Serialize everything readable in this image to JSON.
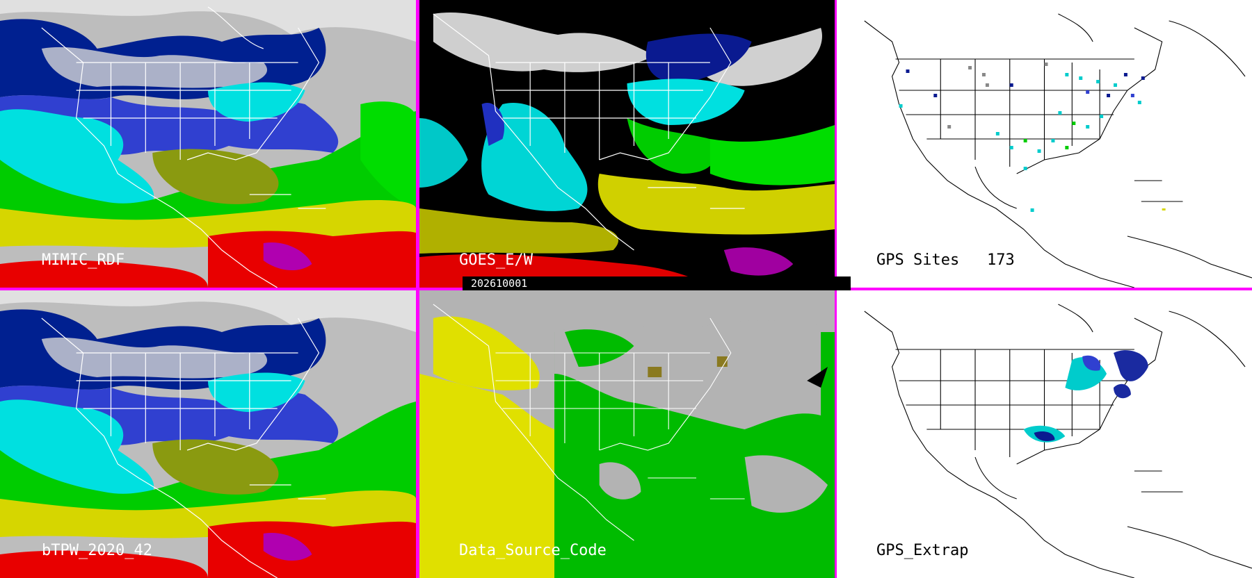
{
  "panels": {
    "mimic": {
      "label": "MIMIC_RDF"
    },
    "goes": {
      "label": "GOES_E/W"
    },
    "gps_sites": {
      "label": "GPS Sites",
      "count": "173"
    },
    "btpw": {
      "label": "bTPW_2020_42"
    },
    "data_source": {
      "label": "Data_Source_Code"
    },
    "gps_extrap": {
      "label": "GPS_Extrap"
    }
  },
  "timestamp": "202610001",
  "colors": {
    "border": "#ff00ff",
    "background_dark": "#1a1a1a",
    "tpw_scale": [
      "#d9d9d9",
      "#001a8c",
      "#3040d0",
      "#00e5e5",
      "#00d000",
      "#7a9a00",
      "#d6d600",
      "#ee0000",
      "#b000b0"
    ],
    "data_source_gray": "#b3b3b3",
    "data_source_yellow": "#e6e600",
    "data_source_green": "#00c000"
  }
}
